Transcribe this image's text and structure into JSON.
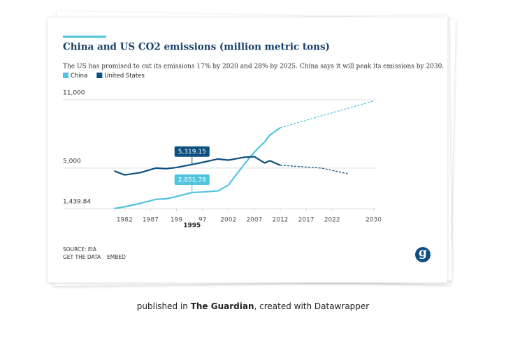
{
  "chart_data": {
    "type": "line",
    "title": "China and US CO2 emissions (million metric tons)",
    "subtitle": "The US has promised to cut its emissions 17% by 2020 and 28% by 2025. China says it will peak its emissions by 2030.",
    "x": [
      1980,
      1982,
      1985,
      1988,
      1990,
      1992,
      1995,
      1997,
      2000,
      2002,
      2005,
      2007,
      2009,
      2010,
      2012
    ],
    "series": [
      {
        "name": "China",
        "color": "#52c4de",
        "values": [
          1440,
          1600,
          1900,
          2250,
          2300,
          2500,
          2851.78,
          2900,
          3000,
          3500,
          5300,
          6400,
          7300,
          7900,
          8550
        ],
        "projection": {
          "x": [
            2012,
            2030
          ],
          "values": [
            8550,
            10900
          ]
        }
      },
      {
        "name": "United States",
        "color": "#0d4f80",
        "values": [
          4750,
          4400,
          4600,
          5000,
          4950,
          5050,
          5319.15,
          5500,
          5800,
          5700,
          5950,
          6000,
          5450,
          5650,
          5250
        ],
        "projection": {
          "x": [
            2012,
            2020,
            2025
          ],
          "values": [
            5250,
            5000,
            4500
          ]
        }
      }
    ],
    "xlim": [
      1979,
      2031
    ],
    "xticks": [
      1982,
      1987,
      {
        "value": 1992,
        "label": "199"
      },
      {
        "value": 1997,
        "label": "97"
      },
      2002,
      2007,
      2012,
      2017,
      2022,
      2030
    ],
    "ylim": [
      1439.84,
      11000
    ],
    "yticks": [
      {
        "value": 1439.84,
        "label": "1,439.84"
      },
      {
        "value": 5000,
        "label": "5,000"
      },
      {
        "value": 11000,
        "label": "11,000"
      }
    ],
    "grid": true,
    "highlight_x": 1995,
    "annotations": [
      {
        "series": 1,
        "x": 1995,
        "value": 5319.15,
        "label": "5,319.15"
      },
      {
        "series": 0,
        "x": 1995,
        "value": 2851.78,
        "label": "2,851.78"
      }
    ],
    "source": "SOURCE: EIA",
    "links": [
      "GET THE DATA",
      "EMBED"
    ],
    "logo": "g"
  },
  "caption": {
    "prefix": "published in ",
    "publication": "The Guardian",
    "suffix": ", created with Datawrapper"
  }
}
